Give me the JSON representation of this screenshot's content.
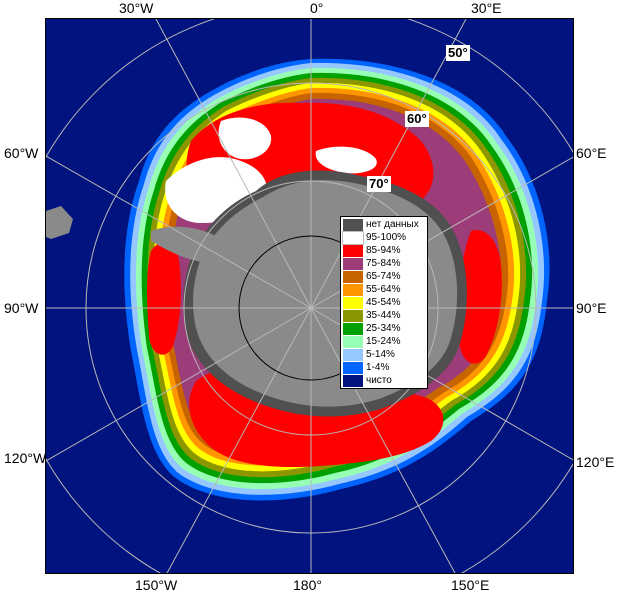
{
  "map": {
    "colors": {
      "ocean": "#00137f",
      "land": "#8a8a8a",
      "no_data": "#505050",
      "grid": "#b8b8b8"
    },
    "graticule": {
      "top": [
        {
          "key": "lon_30w_top",
          "text": "30°W"
        },
        {
          "key": "lon_0_top",
          "text": "0°"
        },
        {
          "key": "lon_30e_top",
          "text": "30°E"
        }
      ],
      "bottom": [
        {
          "key": "lon_150w",
          "text": "150°W"
        },
        {
          "key": "lon_180",
          "text": "180°"
        },
        {
          "key": "lon_150e",
          "text": "150°E"
        }
      ],
      "left": [
        {
          "key": "lon_60w",
          "text": "60°W"
        },
        {
          "key": "lon_90w",
          "text": "90°W"
        },
        {
          "key": "lon_120w",
          "text": "120°W"
        }
      ],
      "right": [
        {
          "key": "lon_60e",
          "text": "60°E"
        },
        {
          "key": "lon_90e",
          "text": "90°E"
        },
        {
          "key": "lon_120e",
          "text": "120°E"
        }
      ],
      "latitudes": [
        {
          "key": "lat_50",
          "text": "50°"
        },
        {
          "key": "lat_60",
          "text": "60°"
        },
        {
          "key": "lat_70",
          "text": "70°"
        }
      ]
    }
  },
  "legend": {
    "items": [
      {
        "label": "нет данных",
        "color": "#505050"
      },
      {
        "label": "95-100%",
        "color": "#ffffff"
      },
      {
        "label": "85-94%",
        "color": "#ff0000"
      },
      {
        "label": "75-84%",
        "color": "#9c3c78"
      },
      {
        "label": "65-74%",
        "color": "#c86400"
      },
      {
        "label": "55-64%",
        "color": "#ff9600"
      },
      {
        "label": "45-54%",
        "color": "#ffff00"
      },
      {
        "label": "35-44%",
        "color": "#8c9600"
      },
      {
        "label": "25-34%",
        "color": "#00a000"
      },
      {
        "label": "15-24%",
        "color": "#96ffb4"
      },
      {
        "label": "5-14%",
        "color": "#96c8ff"
      },
      {
        "label": "1-4%",
        "color": "#0064ff"
      },
      {
        "label": "чисто",
        "color": "#00137f"
      }
    ]
  }
}
